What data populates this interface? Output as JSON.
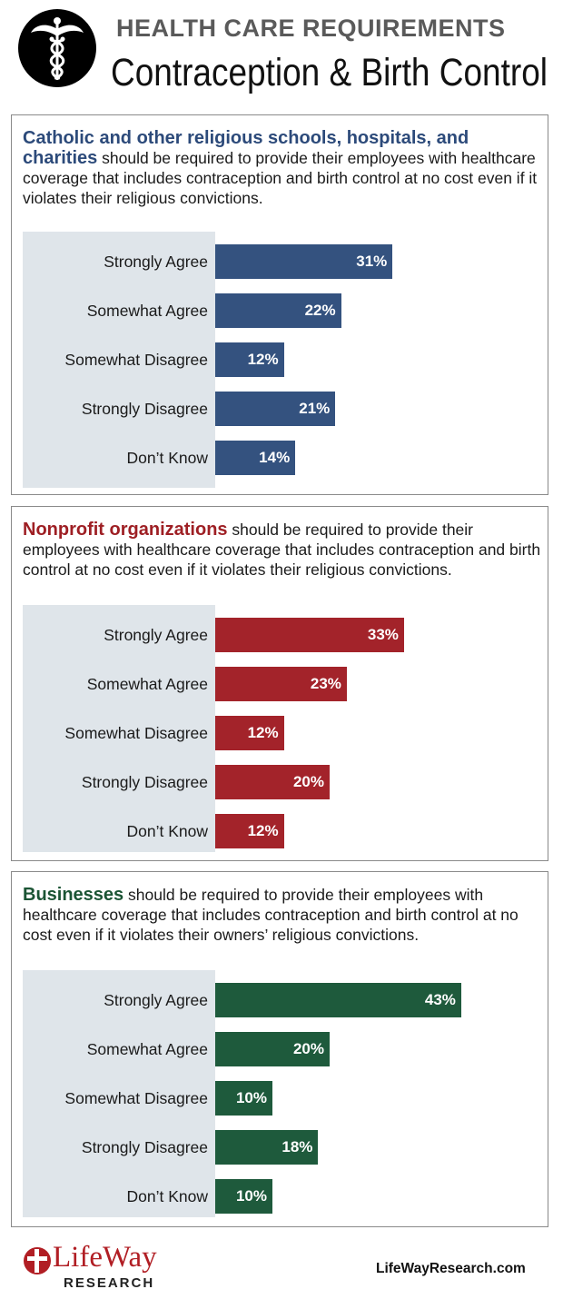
{
  "header": {
    "kicker": "HEALTH CARE REQUIREMENTS",
    "title": "Contraception & Birth Control"
  },
  "chart_data": [
    {
      "type": "bar",
      "orientation": "horizontal",
      "lead": "Catholic and other religious schools, hospitals, and charities",
      "statement": " should be required to provide their employees with healthcare coverage that includes contraception and birth control at no cost even if it violates their religious convictions.",
      "color": "#34527f",
      "lead_color": "#2c4a7a",
      "categories": [
        "Strongly Agree",
        "Somewhat Agree",
        "Somewhat Disagree",
        "Strongly Disagree",
        "Don’t Know"
      ],
      "values": [
        31,
        22,
        12,
        21,
        14
      ],
      "labels": [
        "31%",
        "22%",
        "12%",
        "21%",
        "14%"
      ],
      "unit": "%"
    },
    {
      "type": "bar",
      "orientation": "horizontal",
      "lead": "Nonprofit organizations",
      "statement": " should be required to provide their employees with healthcare coverage that includes contraception and birth control at no cost even if it violates their religious convictions.",
      "color": "#a3232a",
      "lead_color": "#9e1f24",
      "categories": [
        "Strongly Agree",
        "Somewhat Agree",
        "Somewhat Disagree",
        "Strongly Disagree",
        "Don’t Know"
      ],
      "values": [
        33,
        23,
        12,
        20,
        12
      ],
      "labels": [
        "33%",
        "23%",
        "12%",
        "20%",
        "12%"
      ],
      "unit": "%"
    },
    {
      "type": "bar",
      "orientation": "horizontal",
      "lead": "Businesses",
      "statement": " should be required to provide their employees with healthcare coverage that includes contraception and birth control at no cost even if it violates their owners’ religious convictions.",
      "color": "#1e5a3c",
      "lead_color": "#1b5434",
      "categories": [
        "Strongly Agree",
        "Somewhat Agree",
        "Somewhat Disagree",
        "Strongly Disagree",
        "Don’t Know"
      ],
      "values": [
        43,
        20,
        10,
        18,
        10
      ],
      "labels": [
        "43%",
        "20%",
        "10%",
        "18%",
        "10%"
      ],
      "unit": "%"
    }
  ],
  "footer": {
    "brand": "LifeWay",
    "sub": "RESEARCH",
    "url": "LifeWayResearch.com",
    "brand_color": "#b11e24"
  },
  "icons": {
    "emblem": "caduceus-icon",
    "logo": "lifeway-cross-icon"
  }
}
